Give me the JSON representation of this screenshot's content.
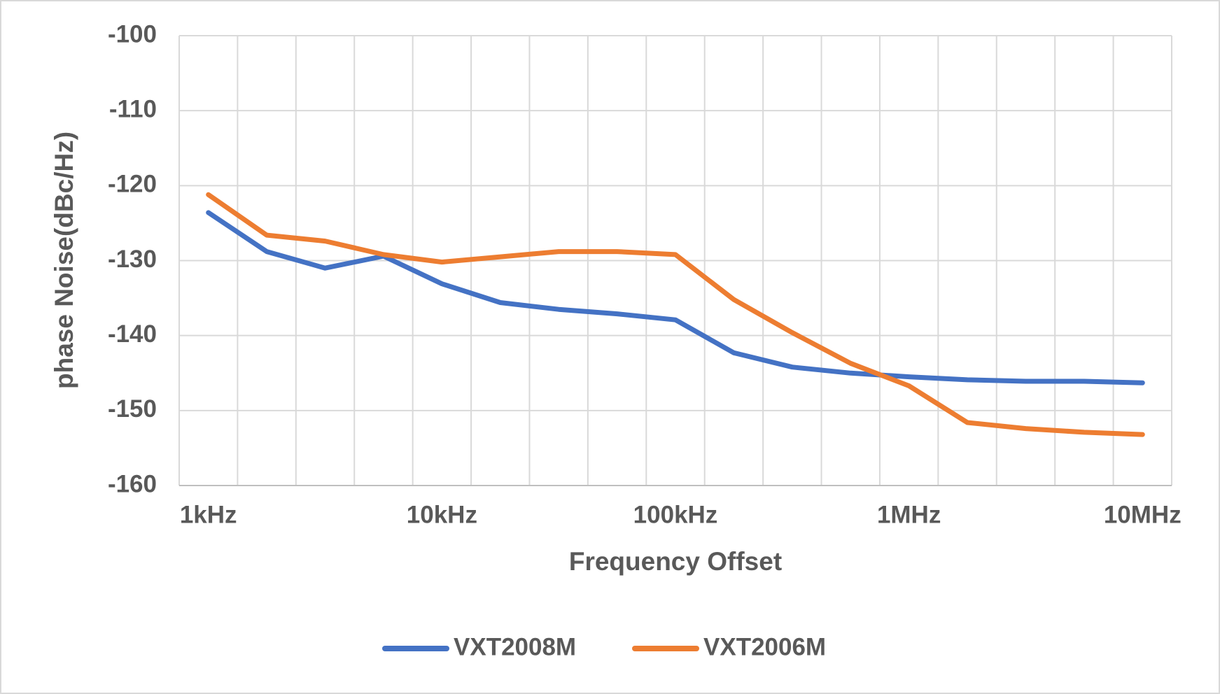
{
  "chart_data": {
    "type": "line",
    "x_label": "Frequency Offset",
    "y_label": "phase Noise(dBc/Hz)",
    "categories": [
      "1kHz",
      null,
      null,
      null,
      "10kHz",
      null,
      null,
      null,
      "100kHz",
      null,
      null,
      null,
      "1MHz",
      null,
      null,
      null,
      "10MHz"
    ],
    "series": [
      {
        "name": "VXT2008M",
        "color": "#4472c4",
        "values": [
          -123.6,
          -128.8,
          -131.0,
          -129.4,
          -133.1,
          -135.6,
          -136.5,
          -137.1,
          -137.9,
          -142.3,
          -144.2,
          -145.0,
          -145.5,
          -145.9,
          -146.1,
          -146.1,
          -146.3
        ]
      },
      {
        "name": "VXT2006M",
        "color": "#ed7d31",
        "values": [
          -121.2,
          -126.6,
          -127.4,
          -129.2,
          -130.2,
          -129.5,
          -128.8,
          -128.8,
          -129.2,
          -135.2,
          -139.6,
          -143.7,
          -146.7,
          -151.6,
          -152.4,
          -152.9,
          -153.2
        ]
      }
    ],
    "ylim": [
      -160,
      -100
    ],
    "yticks": [
      -160,
      -150,
      -140,
      -130,
      -120,
      -110,
      -100
    ],
    "grid": true,
    "legend": "bottom"
  }
}
